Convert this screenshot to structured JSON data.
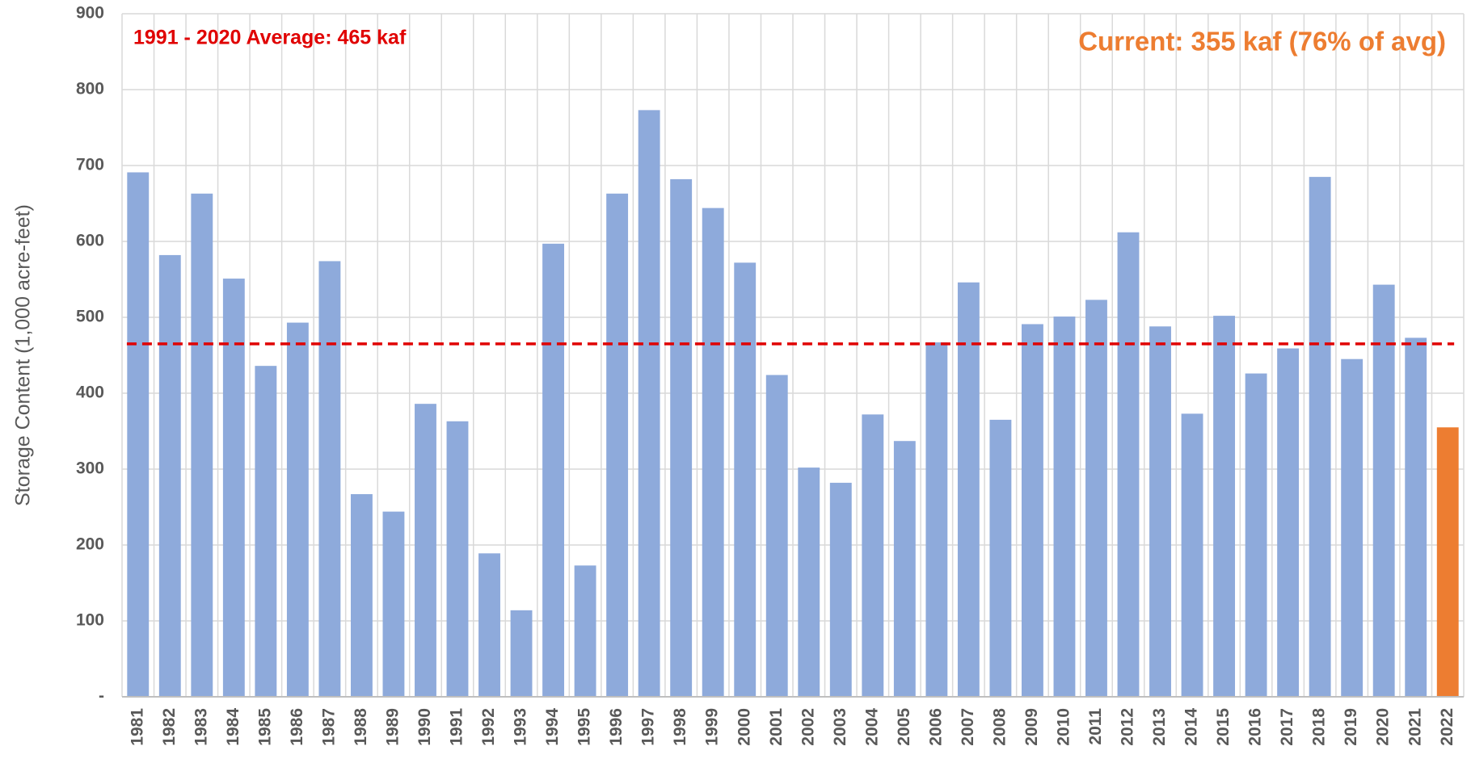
{
  "chart_data": {
    "type": "bar",
    "y_label": "Storage Content (1,000 acre-feet)",
    "categories": [
      "1981",
      "1982",
      "1983",
      "1984",
      "1985",
      "1986",
      "1987",
      "1988",
      "1989",
      "1990",
      "1991",
      "1992",
      "1993",
      "1994",
      "1995",
      "1996",
      "1997",
      "1998",
      "1999",
      "2000",
      "2001",
      "2002",
      "2003",
      "2004",
      "2005",
      "2006",
      "2007",
      "2008",
      "2009",
      "2010",
      "2011",
      "2012",
      "2013",
      "2014",
      "2015",
      "2016",
      "2017",
      "2018",
      "2019",
      "2020",
      "2021",
      "2022"
    ],
    "values": [
      691,
      582,
      663,
      551,
      436,
      493,
      574,
      267,
      244,
      386,
      363,
      189,
      114,
      597,
      173,
      663,
      773,
      682,
      644,
      572,
      424,
      302,
      282,
      372,
      337,
      467,
      546,
      365,
      491,
      501,
      523,
      612,
      488,
      373,
      502,
      426,
      459,
      685,
      445,
      543,
      473,
      355
    ],
    "colors": [
      "#8eaadb",
      "#8eaadb",
      "#8eaadb",
      "#8eaadb",
      "#8eaadb",
      "#8eaadb",
      "#8eaadb",
      "#8eaadb",
      "#8eaadb",
      "#8eaadb",
      "#8eaadb",
      "#8eaadb",
      "#8eaadb",
      "#8eaadb",
      "#8eaadb",
      "#8eaadb",
      "#8eaadb",
      "#8eaadb",
      "#8eaadb",
      "#8eaadb",
      "#8eaadb",
      "#8eaadb",
      "#8eaadb",
      "#8eaadb",
      "#8eaadb",
      "#8eaadb",
      "#8eaadb",
      "#8eaadb",
      "#8eaadb",
      "#8eaadb",
      "#8eaadb",
      "#8eaadb",
      "#8eaadb",
      "#8eaadb",
      "#8eaadb",
      "#8eaadb",
      "#8eaadb",
      "#8eaadb",
      "#8eaadb",
      "#8eaadb",
      "#8eaadb",
      "#ed7d31"
    ],
    "ylim": [
      0,
      900
    ],
    "yticks": [
      {
        "value": 0,
        "label": "-"
      },
      100,
      200,
      300,
      400,
      500,
      600,
      700,
      800,
      900
    ],
    "grid": true,
    "reference_line": {
      "value": 465,
      "color": "#e00000",
      "label": "1991 - 2020 Average: 465 kaf"
    },
    "annotation": {
      "text": "Current: 355 kaf (76% of avg)",
      "color": "#ed7d31"
    }
  }
}
